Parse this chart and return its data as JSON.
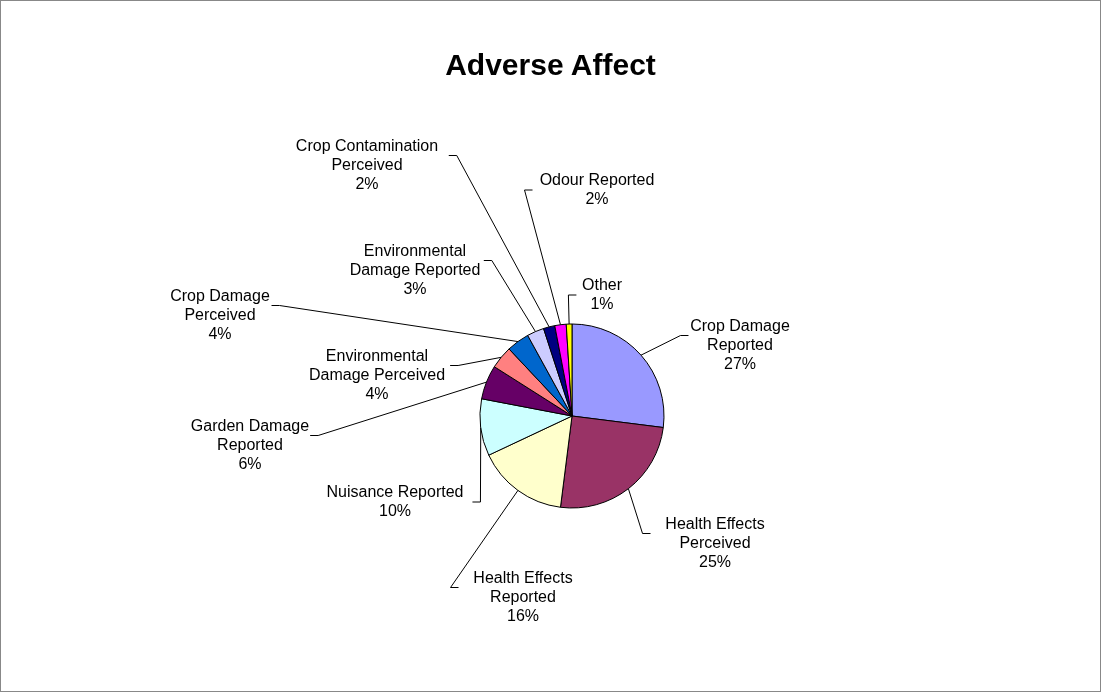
{
  "chart_data": {
    "type": "pie",
    "title": "Adverse Affect",
    "categories": [
      "Crop Damage Reported",
      "Health Effects Perceived",
      "Health Effects Reported",
      "Nuisance Reported",
      "Garden Damage Reported",
      "Environmental Damage Perceived",
      "Crop Damage Perceived",
      "Environmental Damage Reported",
      "Crop Contamination Perceived",
      "Odour Reported",
      "Other"
    ],
    "values": [
      27,
      25,
      16,
      10,
      6,
      4,
      4,
      3,
      2,
      2,
      1
    ],
    "value_labels": [
      "27%",
      "25%",
      "16%",
      "10%",
      "6%",
      "4%",
      "4%",
      "3%",
      "2%",
      "2%",
      "1%"
    ],
    "colors": [
      "#9999ff",
      "#993366",
      "#ffffcc",
      "#ccffff",
      "#660066",
      "#ff8080",
      "#0066cc",
      "#ccccff",
      "#000080",
      "#ff00ff",
      "#ffff00"
    ]
  }
}
